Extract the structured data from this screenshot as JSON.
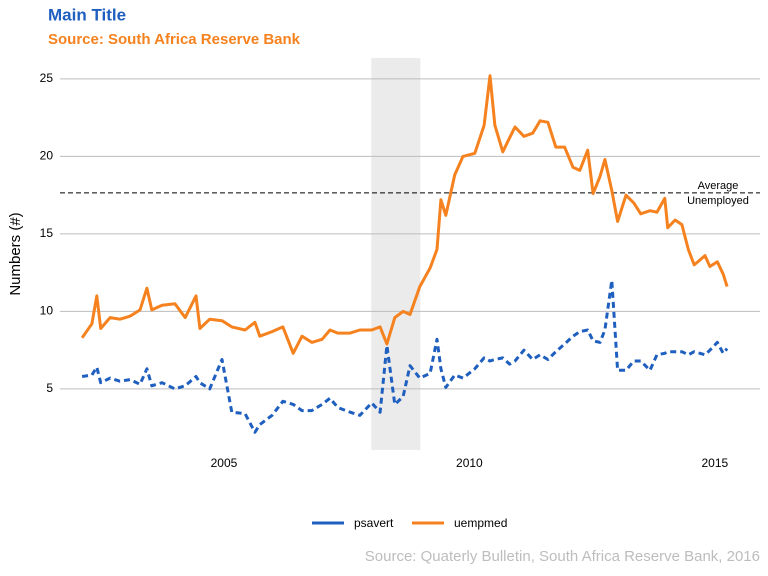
{
  "chart_data": {
    "type": "line",
    "title": "Main Title",
    "subtitle": "Source: South Africa Reserve Bank",
    "y_label": "Numbers (#)",
    "caption": "Source: Quaterly Bulletin, South Africa Reserve Bank, 2016",
    "x": [
      2002.11,
      2002.31,
      2002.41,
      2002.49,
      2002.68,
      2002.88,
      2003.09,
      2003.29,
      2003.43,
      2003.53,
      2003.74,
      2004.0,
      2004.21,
      2004.43,
      2004.51,
      2004.71,
      2004.96,
      2005.16,
      2005.43,
      2005.63,
      2005.73,
      2005.98,
      2006.2,
      2006.41,
      2006.59,
      2006.79,
      2007.0,
      2007.16,
      2007.32,
      2007.57,
      2007.77,
      2008.01,
      2008.18,
      2008.32,
      2008.48,
      2008.65,
      2008.79,
      2008.99,
      2009.2,
      2009.34,
      2009.42,
      2009.52,
      2009.7,
      2009.87,
      2010.11,
      2010.3,
      2010.42,
      2010.52,
      2010.68,
      2010.82,
      2010.93,
      2011.11,
      2011.29,
      2011.44,
      2011.6,
      2011.76,
      2011.94,
      2012.11,
      2012.25,
      2012.41,
      2012.52,
      2012.66,
      2012.76,
      2012.9,
      2013.02,
      2013.19,
      2013.35,
      2013.49,
      2013.68,
      2013.82,
      2013.98,
      2014.04,
      2014.19,
      2014.33,
      2014.46,
      2014.58,
      2014.8,
      2014.9,
      2015.05,
      2015.17,
      2015.25
    ],
    "series": [
      {
        "name": "psavert",
        "color": "#1f5fbf",
        "linetype": "dashed",
        "values": [
          5.8,
          5.9,
          6.4,
          5.4,
          5.7,
          5.5,
          5.6,
          5.3,
          6.3,
          5.2,
          5.4,
          5.0,
          5.2,
          5.8,
          5.4,
          5.0,
          6.9,
          3.5,
          3.4,
          2.2,
          2.7,
          3.3,
          4.2,
          4.0,
          3.6,
          3.6,
          4.0,
          4.4,
          3.8,
          3.5,
          3.3,
          4.1,
          3.5,
          7.8,
          4.0,
          4.5,
          6.5,
          5.7,
          6.0,
          8.2,
          6.3,
          5.1,
          5.9,
          5.7,
          6.3,
          7.0,
          6.8,
          6.9,
          7.0,
          6.6,
          6.8,
          7.5,
          6.9,
          7.2,
          6.9,
          7.4,
          7.9,
          8.4,
          8.7,
          8.8,
          8.1,
          8.0,
          8.8,
          12.0,
          6.2,
          6.2,
          6.8,
          6.8,
          6.2,
          7.2,
          7.3,
          7.4,
          7.4,
          7.4,
          7.2,
          7.4,
          7.2,
          7.5,
          8.0,
          7.3,
          7.6
        ]
      },
      {
        "name": "uempmed",
        "color": "#f5821f",
        "linetype": "solid",
        "values": [
          8.3,
          9.2,
          11.0,
          8.9,
          9.6,
          9.5,
          9.7,
          10.1,
          11.5,
          10.1,
          10.4,
          10.5,
          9.6,
          11.0,
          8.9,
          9.5,
          9.4,
          9.0,
          8.8,
          9.3,
          8.4,
          8.7,
          9.0,
          7.3,
          8.4,
          8.0,
          8.2,
          8.8,
          8.6,
          8.6,
          8.8,
          8.8,
          9.0,
          7.9,
          9.6,
          10.0,
          9.8,
          11.6,
          12.8,
          14.0,
          17.2,
          16.2,
          18.8,
          20.0,
          20.2,
          22.0,
          25.2,
          22.0,
          20.3,
          21.2,
          21.9,
          21.3,
          21.5,
          22.3,
          22.2,
          20.6,
          20.6,
          19.3,
          19.1,
          20.4,
          17.6,
          18.7,
          19.8,
          17.8,
          15.8,
          17.5,
          17.0,
          16.3,
          16.5,
          16.4,
          17.3,
          15.4,
          15.9,
          15.6,
          14.0,
          13.0,
          13.6,
          12.9,
          13.2,
          12.4,
          11.6
        ]
      }
    ],
    "shade": [
      2008.0,
      2009.0
    ],
    "hline": {
      "value": 17.65,
      "label": [
        "Average",
        "Unemployed"
      ]
    },
    "xlim": [
      2001.66,
      2015.92
    ],
    "xticks": [
      2005,
      2010,
      2015
    ],
    "ylim": [
      1.06,
      26.35
    ],
    "yticks": [
      5,
      10,
      15,
      20,
      25
    ],
    "grid": true,
    "legend": "bottom"
  }
}
